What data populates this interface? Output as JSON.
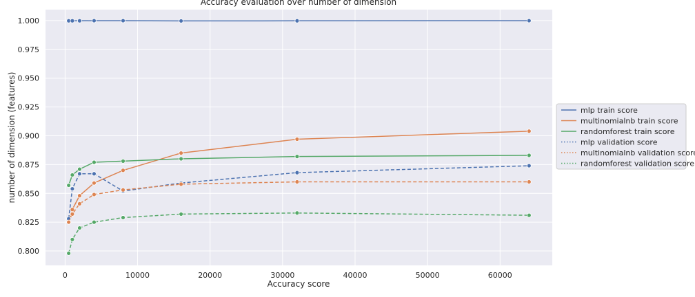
{
  "chart_data": {
    "type": "line",
    "title": "Accuracy evaluation over number of dimension",
    "xlabel": "Accuracy score",
    "ylabel": "number of dimension (features)",
    "xlim": [
      -2700,
      67200
    ],
    "ylim": [
      0.7875,
      1.0095
    ],
    "xticks": [
      0,
      10000,
      20000,
      30000,
      40000,
      50000,
      60000
    ],
    "xtick_labels": [
      "0",
      "10000",
      "20000",
      "30000",
      "40000",
      "50000",
      "60000"
    ],
    "yticks": [
      0.8,
      0.825,
      0.85,
      0.875,
      0.9,
      0.925,
      0.95,
      0.975,
      1.0
    ],
    "ytick_labels": [
      "0.800",
      "0.825",
      "0.850",
      "0.875",
      "0.900",
      "0.925",
      "0.950",
      "0.975",
      "1.000"
    ],
    "grid": true,
    "legend_position": "right",
    "x": [
      500,
      1000,
      2000,
      4000,
      8000,
      16000,
      32000,
      64000
    ],
    "series": [
      {
        "name": "mlp train score",
        "color": "#4c72b0",
        "style": "solid",
        "values": [
          0.9998,
          0.9998,
          0.9998,
          0.9999,
          0.9999,
          0.9997,
          0.9998,
          0.9999
        ]
      },
      {
        "name": "multinomialnb train score",
        "color": "#dd8452",
        "style": "solid",
        "values": [
          0.825,
          0.836,
          0.848,
          0.859,
          0.87,
          0.885,
          0.897,
          0.904
        ]
      },
      {
        "name": "randomforest train score",
        "color": "#55a868",
        "style": "solid",
        "values": [
          0.857,
          0.866,
          0.871,
          0.877,
          0.878,
          0.88,
          0.882,
          0.883
        ]
      },
      {
        "name": "mlp validation score",
        "color": "#4c72b0",
        "style": "dashed",
        "values": [
          0.828,
          0.854,
          0.867,
          0.867,
          0.852,
          0.859,
          0.868,
          0.874
        ]
      },
      {
        "name": "multinomialnb validation score",
        "color": "#dd8452",
        "style": "dashed",
        "values": [
          0.825,
          0.832,
          0.841,
          0.849,
          0.853,
          0.858,
          0.86,
          0.86
        ]
      },
      {
        "name": "randomforest validation score",
        "color": "#55a868",
        "style": "dashed",
        "values": [
          0.798,
          0.81,
          0.82,
          0.825,
          0.829,
          0.832,
          0.833,
          0.831
        ]
      }
    ]
  }
}
